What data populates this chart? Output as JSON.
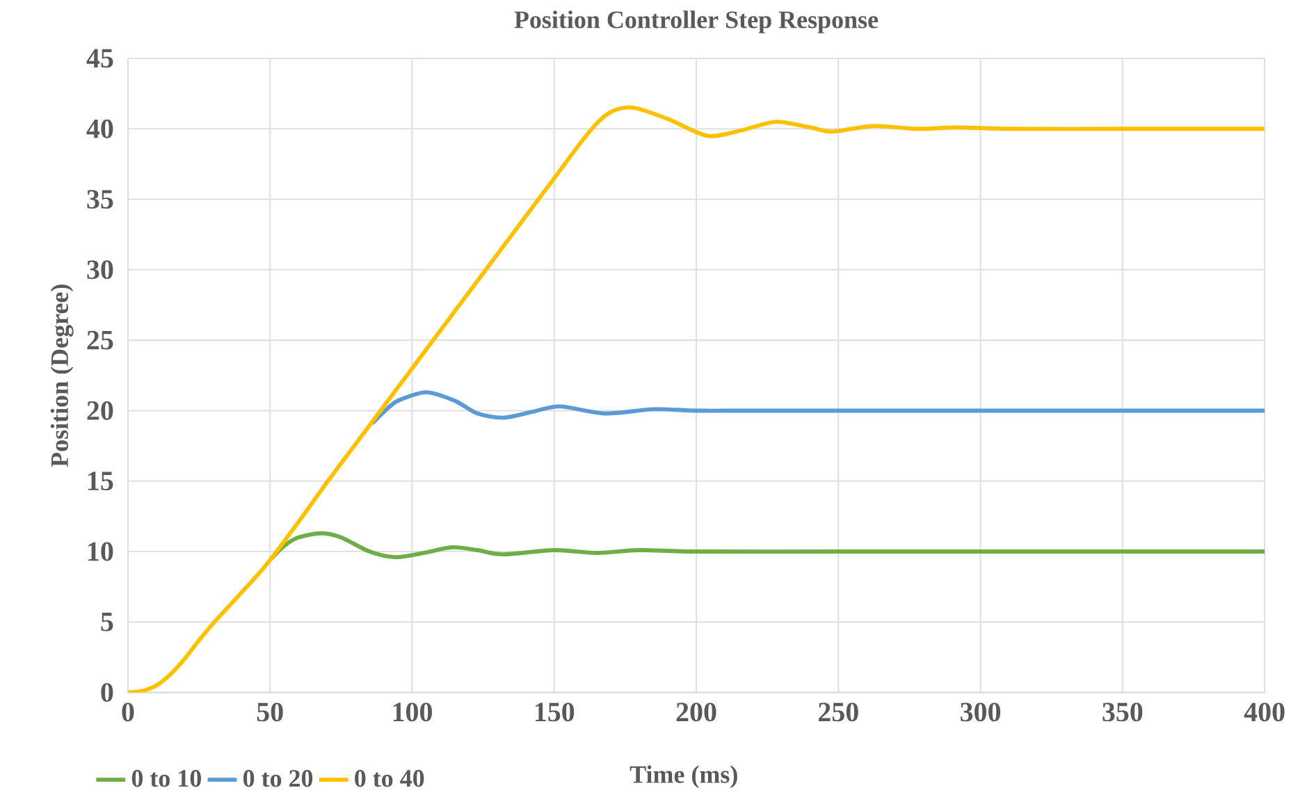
{
  "chart_data": {
    "type": "line",
    "title": "Position Controller Step Response",
    "xlabel": "Time (ms)",
    "ylabel": "Position (Degree)",
    "xlim": [
      0,
      400
    ],
    "ylim": [
      0,
      45
    ],
    "xticks": [
      0,
      50,
      100,
      150,
      200,
      250,
      300,
      350,
      400
    ],
    "yticks": [
      0,
      5,
      10,
      15,
      20,
      25,
      30,
      35,
      40,
      45
    ],
    "grid": true,
    "legend": "bottom left",
    "marker": "none",
    "line_style": "solid",
    "series": [
      {
        "name": "0 to 10",
        "color": "#70ad47",
        "x": [
          50,
          55,
          60,
          68,
          75,
          85,
          94,
          104,
          114,
          123,
          132,
          150,
          165,
          180,
          200,
          250,
          300,
          350,
          400
        ],
        "values": [
          9.4,
          10.4,
          11.0,
          11.3,
          11.0,
          10.0,
          9.6,
          9.9,
          10.3,
          10.1,
          9.8,
          10.1,
          9.9,
          10.1,
          10,
          10,
          10,
          10,
          10
        ]
      },
      {
        "name": "0 to 20",
        "color": "#5b9bd5",
        "x": [
          86,
          90,
          95,
          105,
          115,
          123,
          132,
          142,
          152,
          168,
          185,
          200,
          215,
          230,
          300,
          400
        ],
        "values": [
          19.1,
          19.9,
          20.7,
          21.3,
          20.7,
          19.8,
          19.5,
          19.9,
          20.3,
          19.8,
          20.1,
          20,
          20,
          20,
          20,
          20
        ]
      },
      {
        "name": "0 to 40",
        "color": "#ffc000",
        "x": [
          0,
          5,
          10,
          15,
          20,
          25,
          30,
          35,
          40,
          45,
          50,
          60,
          70,
          80,
          90,
          100,
          110,
          120,
          130,
          140,
          150,
          160,
          166,
          171,
          178,
          190,
          204,
          216,
          228,
          240,
          248,
          262,
          278,
          292,
          310,
          350,
          400
        ],
        "values": [
          0,
          0.1,
          0.5,
          1.3,
          2.4,
          3.7,
          4.9,
          6.0,
          7.1,
          8.2,
          9.4,
          12.1,
          14.9,
          17.6,
          20.3,
          23.0,
          25.7,
          28.4,
          31.1,
          33.8,
          36.5,
          39.2,
          40.6,
          41.3,
          41.5,
          40.7,
          39.5,
          39.9,
          40.5,
          40.1,
          39.8,
          40.2,
          40,
          40.1,
          40,
          40,
          40
        ]
      }
    ]
  }
}
